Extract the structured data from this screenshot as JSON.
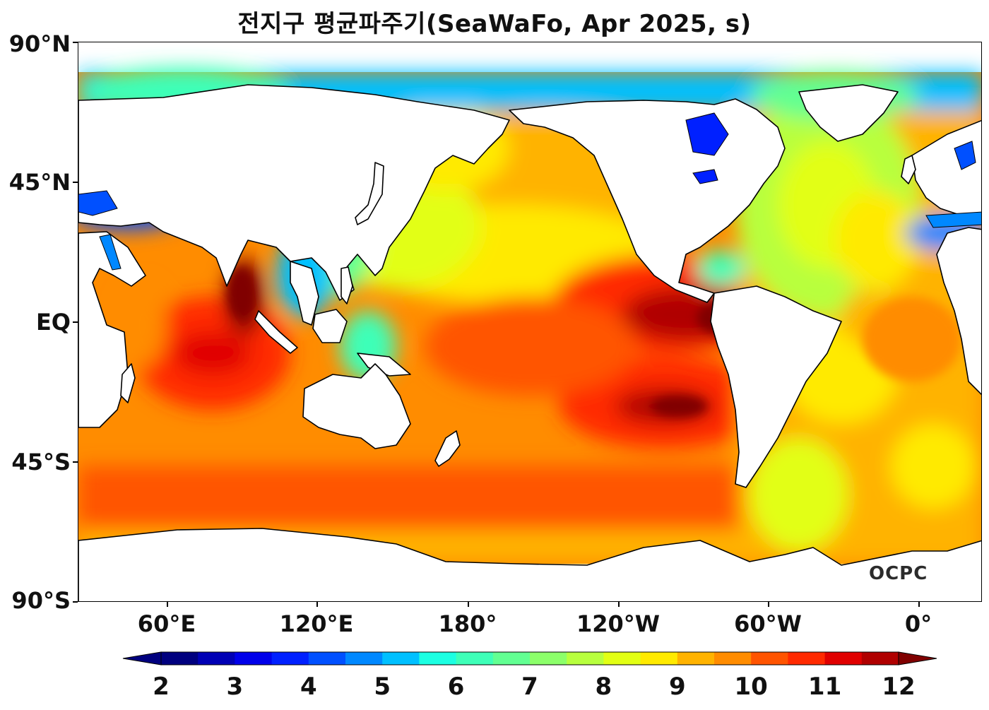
{
  "title": "전지구 평균파주기(SeaWaFo, Apr 2025, s)",
  "watermark": "OCPC",
  "y_axis": {
    "labels": [
      "90°N",
      "45°N",
      "EQ",
      "45°S",
      "90°S"
    ]
  },
  "x_axis": {
    "labels": [
      "60°E",
      "120°E",
      "180°",
      "120°W",
      "60°W",
      "0°"
    ]
  },
  "colorbar": {
    "min": 2,
    "max": 12,
    "step": 0.5,
    "extend": "both",
    "labels": [
      "2",
      "3",
      "4",
      "5",
      "6",
      "7",
      "8",
      "9",
      "10",
      "11",
      "12"
    ],
    "colors": [
      "#00007f",
      "#0000b5",
      "#0000ea",
      "#0020ff",
      "#0050ff",
      "#0088ff",
      "#00c0ff",
      "#1cffe2",
      "#3effb8",
      "#62ff92",
      "#8cff6a",
      "#b8ff3e",
      "#e2ff14",
      "#ffea00",
      "#ffb300",
      "#ff8c00",
      "#ff5400",
      "#ff2a00",
      "#e00000",
      "#b00000"
    ],
    "under_color": "#00007f",
    "over_color": "#800000"
  },
  "chart_data": {
    "type": "heatmap",
    "title": "전지구 평균파주기(SeaWaFo, Apr 2025, s)",
    "variable_unit": "s",
    "projection": "plate carree, central longitude 150°W-ish (map spans ~25°E to 15°E)",
    "lat_range": [
      -90,
      90
    ],
    "lon_ticks": [
      "60°E",
      "120°E",
      "180°",
      "120°W",
      "60°W",
      "0°"
    ],
    "lat_ticks": [
      "90°N",
      "45°N",
      "EQ",
      "45°S",
      "90°S"
    ],
    "color_range": [
      2,
      12
    ],
    "regions_approx_period_s": [
      {
        "region": "Eastern tropical Pacific off Central America",
        "value": 12
      },
      {
        "region": "Bay of Bengal",
        "value": 12
      },
      {
        "region": "Central Indian Ocean",
        "value": 11
      },
      {
        "region": "Southeast Pacific",
        "value": 11.5
      },
      {
        "region": "Southern Ocean",
        "value": 10
      },
      {
        "region": "North Pacific",
        "value": 9
      },
      {
        "region": "North Atlantic",
        "value": 7.5
      },
      {
        "region": "South Atlantic",
        "value": 9
      },
      {
        "region": "Arctic Ocean",
        "value": 5
      },
      {
        "region": "Hudson Bay / Baltic / Mediterranean",
        "value": 4
      },
      {
        "region": "Marginal seas of East Asia",
        "value": 6
      }
    ]
  }
}
